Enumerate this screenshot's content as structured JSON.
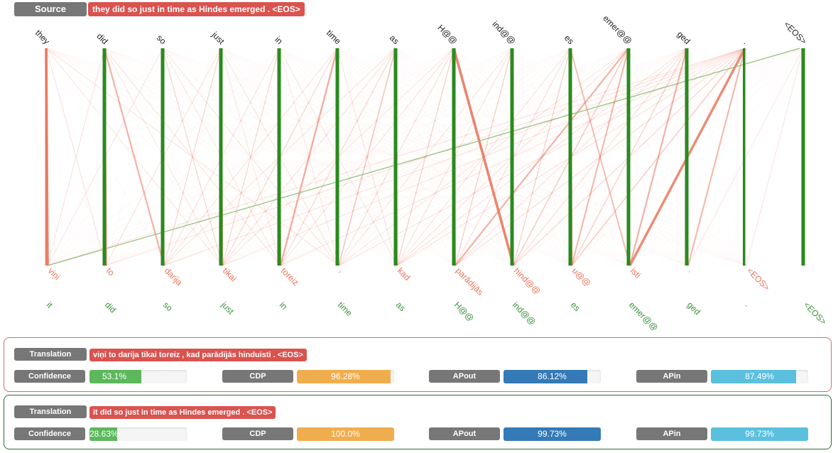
{
  "source": {
    "label": "Source",
    "text": "they did so just in time as Hindes emerged . <EOS>",
    "tokens": [
      "they",
      "did",
      "so",
      "just",
      "in",
      "time",
      "as",
      "H@@",
      "ind@@",
      "es",
      "emer@@",
      "ged",
      ".",
      "<EOS>"
    ]
  },
  "target_tokens": [
    "viņi",
    "to",
    "darija",
    "tikai",
    "toreiz",
    ",",
    "kad",
    "parādijās",
    "hind@@",
    "u@@",
    "isti",
    ".",
    "<EOS>"
  ],
  "reference_tokens": [
    "it",
    "did",
    "so",
    "just",
    "in",
    "time",
    "as",
    "H@@",
    "ind@@",
    "es",
    "emer@@",
    "ged",
    ".",
    "<EOS>"
  ],
  "colors": {
    "source_token": "#222222",
    "target_token": "#e8735a",
    "reference_token": "#3a8f3a",
    "attention": "#e8735a",
    "alignment": "#2a8a1e",
    "eos_link": "#8fc07a"
  },
  "attention_edges": [
    [
      0,
      0,
      1
    ],
    [
      1,
      1,
      0.9
    ],
    [
      1,
      2,
      0.55
    ],
    [
      2,
      2,
      0.35
    ],
    [
      3,
      3,
      0.7
    ],
    [
      4,
      4,
      0.5
    ],
    [
      5,
      4,
      0.6
    ],
    [
      6,
      6,
      0.6
    ],
    [
      6,
      5,
      0.35
    ],
    [
      7,
      7,
      0.45
    ],
    [
      7,
      8,
      1
    ],
    [
      9,
      9,
      0.75
    ],
    [
      9,
      10,
      0.45
    ],
    [
      10,
      9,
      0.5
    ],
    [
      11,
      10,
      0.55
    ],
    [
      12,
      10,
      0.95
    ],
    [
      12,
      11,
      0.5
    ],
    [
      10,
      7,
      0.55
    ],
    [
      3,
      2,
      0.2
    ],
    [
      2,
      3,
      0.2
    ],
    [
      4,
      3,
      0.2
    ],
    [
      5,
      3,
      0.2
    ],
    [
      6,
      4,
      0.2
    ],
    [
      7,
      6,
      0.25
    ],
    [
      8,
      7,
      0.25
    ],
    [
      8,
      8,
      0.25
    ],
    [
      9,
      8,
      0.25
    ],
    [
      10,
      8,
      0.3
    ],
    [
      11,
      9,
      0.25
    ],
    [
      12,
      9,
      0.3
    ],
    [
      12,
      8,
      0.2
    ],
    [
      11,
      8,
      0.15
    ],
    [
      0,
      1,
      0.12
    ],
    [
      1,
      0,
      0.12
    ],
    [
      2,
      0,
      0.1
    ],
    [
      3,
      1,
      0.12
    ],
    [
      4,
      2,
      0.12
    ],
    [
      5,
      5,
      0.15
    ],
    [
      6,
      3,
      0.12
    ],
    [
      7,
      5,
      0.15
    ],
    [
      8,
      6,
      0.12
    ],
    [
      9,
      7,
      0.15
    ],
    [
      10,
      6,
      0.12
    ],
    [
      11,
      7,
      0.12
    ],
    [
      12,
      7,
      0.15
    ],
    [
      12,
      6,
      0.12
    ],
    [
      12,
      5,
      0.1
    ],
    [
      12,
      4,
      0.1
    ],
    [
      12,
      3,
      0.1
    ],
    [
      12,
      2,
      0.1
    ],
    [
      12,
      1,
      0.1
    ],
    [
      12,
      0,
      0.1
    ],
    [
      13,
      12,
      0.1
    ],
    [
      0,
      5,
      0.1
    ],
    [
      1,
      4,
      0.1
    ],
    [
      2,
      5,
      0.1
    ],
    [
      3,
      5,
      0.1
    ],
    [
      4,
      6,
      0.1
    ],
    [
      5,
      6,
      0.12
    ],
    [
      5,
      2,
      0.1
    ],
    [
      6,
      2,
      0.1
    ],
    [
      7,
      4,
      0.1
    ],
    [
      7,
      3,
      0.1
    ],
    [
      8,
      5,
      0.1
    ],
    [
      9,
      6,
      0.1
    ],
    [
      10,
      5,
      0.1
    ],
    [
      11,
      6,
      0.1
    ],
    [
      0,
      3,
      0.08
    ],
    [
      1,
      3,
      0.08
    ],
    [
      2,
      4,
      0.08
    ],
    [
      3,
      4,
      0.08
    ],
    [
      4,
      5,
      0.08
    ],
    [
      13,
      11,
      0.08
    ],
    [
      11,
      11,
      0.15
    ]
  ],
  "translations": [
    {
      "label": "Translation",
      "text": "viņi to darija tikai toreiz , kad parādijās hinduisti . <EOS>",
      "metrics": [
        {
          "label": "Confidence",
          "value": 53.1,
          "text": "53.1%"
        },
        {
          "label": "CDP",
          "value": 96.28,
          "text": "96.28%"
        },
        {
          "label": "APout",
          "value": 86.12,
          "text": "86.12%"
        },
        {
          "label": "APin",
          "value": 87.49,
          "text": "87.49%"
        }
      ]
    },
    {
      "label": "Translation",
      "text": "it did so just in time as Hindes emerged . <EOS>",
      "metrics": [
        {
          "label": "Confidence",
          "value": 28.63,
          "text": "28.63%"
        },
        {
          "label": "CDP",
          "value": 100.0,
          "text": "100.0%"
        },
        {
          "label": "APout",
          "value": 99.73,
          "text": "99.73%"
        },
        {
          "label": "APin",
          "value": 99.73,
          "text": "99.73%"
        }
      ]
    }
  ]
}
